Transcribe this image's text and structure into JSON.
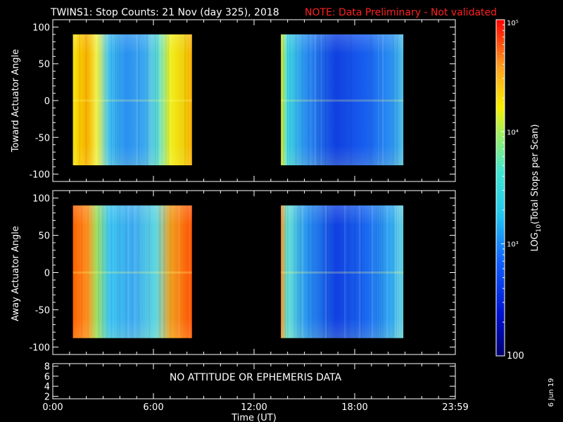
{
  "header": {
    "title": "TWINS1: Stop Counts: 21 Nov (day 325), 2018",
    "note": "NOTE: Data Preliminary - Not validated",
    "note_color": "#ff2020"
  },
  "footer": {
    "date_stamp": "6 Jun 19"
  },
  "attitude_panel": {
    "message": "NO ATTITUDE OR EPHEMERIS DATA"
  },
  "colorbar": {
    "label": "LOG10(Total Stops per Scan)",
    "label_main": "LOG",
    "label_sub": "10",
    "label_rest": "(Total Stops per Scan)",
    "ticks": [
      {
        "value": 100,
        "label": "100"
      },
      {
        "value": 1000,
        "label": "10³"
      },
      {
        "value": 10000,
        "label": "10⁴"
      },
      {
        "value": 100000,
        "label": "10⁵"
      }
    ],
    "range": [
      100,
      100000
    ],
    "scale": "log"
  },
  "chart_data": [
    {
      "type": "heatmap",
      "ylabel": "Toward Actuator Angle",
      "xlabel": "",
      "xlim": [
        0,
        24
      ],
      "ylim": [
        -110,
        110
      ],
      "yticks": [
        100,
        50,
        0,
        -50,
        -100
      ],
      "ytick_labels": [
        "100",
        "50",
        "0",
        "-50",
        "-100"
      ],
      "data_blocks": [
        {
          "x": [
            1.2,
            8.3
          ],
          "y": [
            -88,
            90
          ],
          "description_level": "high-edges"
        },
        {
          "x": [
            13.6,
            20.9
          ],
          "y": [
            -88,
            90
          ],
          "description_level": "low-center"
        }
      ]
    },
    {
      "type": "heatmap",
      "ylabel": "Away Actuator Angle",
      "xlabel": "Time (UT)",
      "xlim": [
        0,
        24
      ],
      "ylim": [
        -110,
        110
      ],
      "yticks": [
        100,
        50,
        0,
        -50,
        -100
      ],
      "ytick_labels": [
        "100",
        "50",
        "0",
        "-50",
        "-100"
      ],
      "xticks": [
        0,
        6,
        12,
        18,
        24
      ],
      "xtick_labels": [
        "0:00",
        "6:00",
        "12:00",
        "18:00",
        "23:59"
      ],
      "data_blocks": [
        {
          "x": [
            1.2,
            8.3
          ],
          "y": [
            -88,
            90
          ],
          "description_level": "high-edges"
        },
        {
          "x": [
            13.6,
            20.9
          ],
          "y": [
            -88,
            90
          ],
          "description_level": "low-center"
        }
      ]
    },
    {
      "type": "line",
      "ylabel": "",
      "xlim": [
        0,
        24
      ],
      "ylim": [
        1.5,
        8.5
      ],
      "yticks": [
        8,
        6,
        4,
        2
      ],
      "ytick_labels": [
        "8",
        "6",
        "4",
        "2"
      ]
    }
  ]
}
